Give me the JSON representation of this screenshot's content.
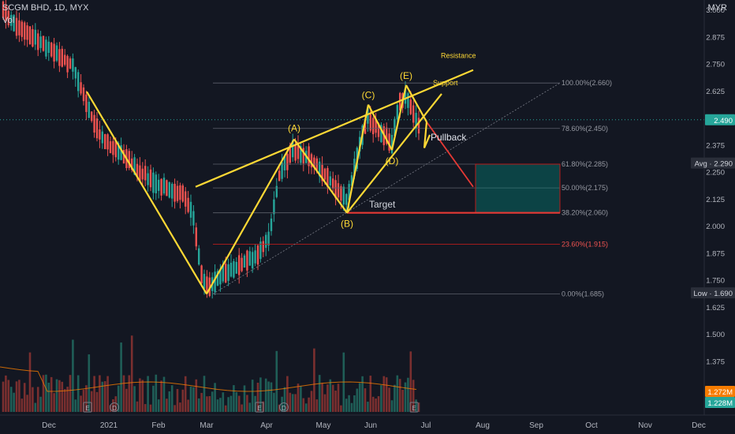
{
  "header": {
    "symbol_line": "SCGM BHD, 1D, MYX",
    "vol_label": "Vol",
    "currency": "MYR"
  },
  "colors": {
    "bg": "#131722",
    "up": "#26a69a",
    "down": "#ef5350",
    "yellow": "#fdd835",
    "red": "#e53935"
  },
  "chart_data": {
    "type": "candlestick",
    "title": "SCGM BHD, 1D, MYX",
    "xlabels": [
      "Dec",
      "2021",
      "Feb",
      "Mar",
      "Apr",
      "May",
      "Jun",
      "Jul",
      "Aug",
      "Sep",
      "Oct",
      "Nov",
      "Dec"
    ],
    "yticks": [
      "3.000",
      "2.875",
      "2.750",
      "2.625",
      "2.375",
      "2.250",
      "2.125",
      "2.000",
      "1.875",
      "1.750",
      "1.625",
      "1.500",
      "1.375"
    ],
    "ylim": [
      1.3,
      3.0
    ],
    "badges": [
      {
        "text": "2.490",
        "value": 2.49,
        "kind": "last"
      },
      {
        "text": "Avg · 2.290",
        "value": 2.29,
        "kind": "label"
      },
      {
        "text": "Low · 1.690",
        "value": 1.69,
        "kind": "label"
      },
      {
        "text": "1.272M",
        "value": 1.272,
        "kind": "vol1"
      },
      {
        "text": "1.228M",
        "value": 1.228,
        "kind": "vol2"
      }
    ],
    "fib_levels": [
      {
        "label": "100.00%(2.660)",
        "value": 2.66
      },
      {
        "label": "78.60%(2.450)",
        "value": 2.45
      },
      {
        "label": "61.80%(2.285)",
        "value": 2.285
      },
      {
        "label": "50.00%(2.175)",
        "value": 2.175
      },
      {
        "label": "38.20%(2.060)",
        "value": 2.06
      },
      {
        "label": "23.60%(1.915)",
        "value": 1.915
      },
      {
        "label": "0.00%(1.685)",
        "value": 1.685
      }
    ],
    "waves": [
      {
        "label": "(A)",
        "value": 2.4
      },
      {
        "label": "(B)",
        "value": 2.06
      },
      {
        "label": "(C)",
        "value": 2.56
      },
      {
        "label": "(D)",
        "value": 2.35
      },
      {
        "label": "(E)",
        "value": 2.65
      }
    ],
    "annotations": [
      "Resistance",
      "Support",
      "Pullback",
      "Target"
    ],
    "event_markers": [
      "E",
      "D",
      "E",
      "D",
      "E"
    ]
  }
}
